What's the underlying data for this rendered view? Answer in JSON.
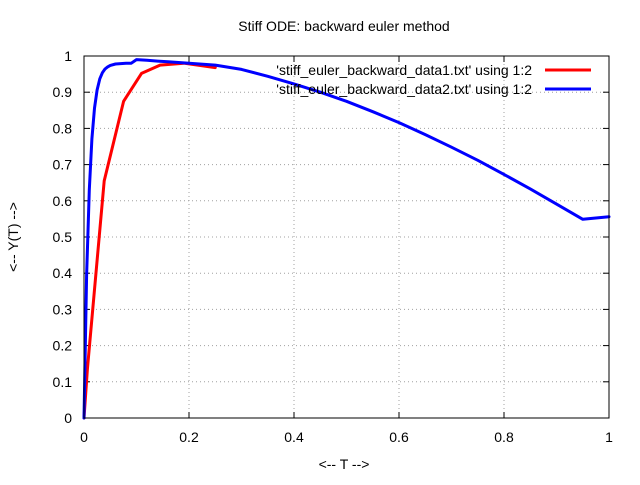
{
  "chart_data": {
    "type": "line",
    "title": "Stiff ODE: backward euler method",
    "xlabel": "<-- T -->",
    "ylabel": "<-- Y(T) -->",
    "xlim": [
      0,
      1
    ],
    "ylim": [
      0,
      1
    ],
    "xticks": [
      0,
      0.2,
      0.4,
      0.6,
      0.8,
      1
    ],
    "xtick_labels": [
      "0",
      "0.2",
      "0.4",
      "0.6",
      "0.8",
      "1"
    ],
    "yticks": [
      0,
      0.1,
      0.2,
      0.3,
      0.4,
      0.5,
      0.6,
      0.7,
      0.8,
      0.9,
      1
    ],
    "ytick_labels": [
      "0",
      "0.1",
      "0.2",
      "0.3",
      "0.4",
      "0.5",
      "0.6",
      "0.7",
      "0.8",
      "0.9",
      "1"
    ],
    "grid": true,
    "legend_position": "top-right",
    "series": [
      {
        "name": "'stiff_euler_backward_data1.txt' using 1:2",
        "color": "#ff0000",
        "x": [
          0,
          0.0065,
          0.0385,
          0.0755,
          0.1095,
          0.145,
          0.19,
          0.25
        ],
        "y": [
          0,
          0.135,
          0.655,
          0.875,
          0.952,
          0.975,
          0.98,
          0.968
        ]
      },
      {
        "name": "'stiff_euler_backward_data2.txt' using 1:2",
        "color": "#0000ff",
        "x": [
          0,
          0.005,
          0.01,
          0.015,
          0.02,
          0.025,
          0.03,
          0.035,
          0.04,
          0.045,
          0.05,
          0.06,
          0.07,
          0.08,
          0.09,
          0.1,
          0.12,
          0.14,
          0.16,
          0.18,
          0.2,
          0.25,
          0.3,
          0.35,
          0.4,
          0.45,
          0.5,
          0.55,
          0.6,
          0.65,
          0.7,
          0.75,
          0.8,
          0.85,
          0.9,
          0.95,
          1.0
        ],
        "y": [
          0,
          0.393,
          0.63,
          0.771,
          0.856,
          0.906,
          0.937,
          0.954,
          0.964,
          0.97,
          0.974,
          0.978,
          0.979,
          0.98,
          0.98,
          0.99,
          0.988,
          0.986,
          0.984,
          0.982,
          0.98,
          0.975,
          0.963,
          0.944,
          0.923,
          0.9,
          0.875,
          0.846,
          0.816,
          0.783,
          0.748,
          0.712,
          0.673,
          0.633,
          0.591,
          0.549,
          0.556
        ]
      }
    ]
  }
}
